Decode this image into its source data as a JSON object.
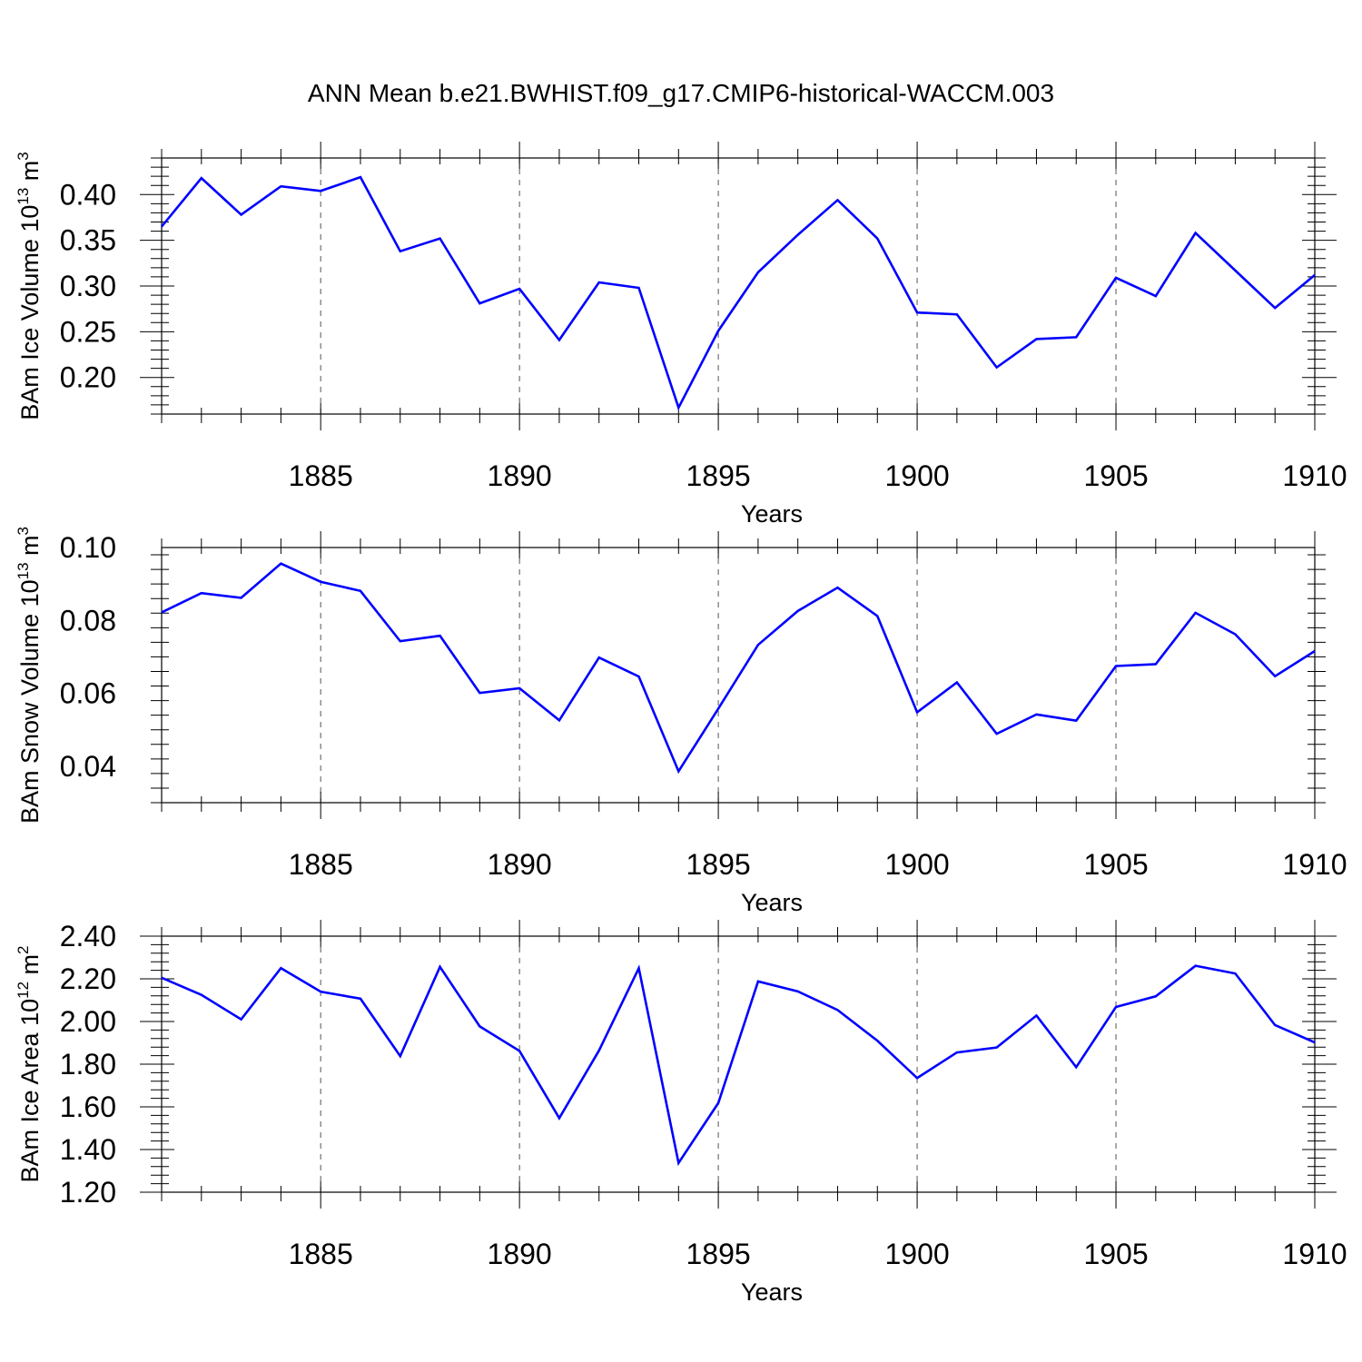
{
  "title": "ANN Mean b.e21.BWHIST.f09_g17.CMIP6-historical-WACCM.003",
  "colors": {
    "series": "#0000ff",
    "frame": "#000000",
    "grid": "#555555"
  },
  "chart_data": [
    {
      "type": "line",
      "xlabel": "Years",
      "ylabel": {
        "base": "BAm Ice Volume 10",
        "exp": "13",
        "unit": " m",
        "unit_exp": "3"
      },
      "xlim": [
        1881,
        1910
      ],
      "ylim": [
        0.16,
        0.44
      ],
      "xticks": [
        1885,
        1890,
        1895,
        1900,
        1905,
        1910
      ],
      "xtick_labels": [
        "1885",
        "1890",
        "1895",
        "1900",
        "1905",
        "1910"
      ],
      "yticks": [
        0.2,
        0.25,
        0.3,
        0.35,
        0.4
      ],
      "ytick_labels": [
        "0.20",
        "0.25",
        "0.30",
        "0.35",
        "0.40"
      ],
      "grid": "vertical-dashed-at-major-x",
      "x": [
        1881,
        1882,
        1883,
        1884,
        1885,
        1886,
        1887,
        1888,
        1889,
        1890,
        1891,
        1892,
        1893,
        1894,
        1895,
        1896,
        1897,
        1898,
        1899,
        1900,
        1901,
        1902,
        1903,
        1904,
        1905,
        1906,
        1907,
        1908,
        1909,
        1910
      ],
      "series": [
        {
          "values": [
            0.365,
            0.418,
            0.378,
            0.409,
            0.404,
            0.419,
            0.338,
            0.352,
            0.281,
            0.297,
            0.241,
            0.304,
            0.298,
            0.167,
            0.251,
            0.315,
            0.356,
            0.394,
            0.352,
            0.271,
            0.269,
            0.211,
            0.242,
            0.244,
            0.309,
            0.289,
            0.358,
            0.317,
            0.276,
            0.312
          ]
        }
      ]
    },
    {
      "type": "line",
      "xlabel": "Years",
      "ylabel": {
        "base": "BAm Snow Volume 10",
        "exp": "13",
        "unit": " m",
        "unit_exp": "3"
      },
      "xlim": [
        1881,
        1910
      ],
      "ylim": [
        0.03,
        0.1
      ],
      "xticks": [
        1885,
        1890,
        1895,
        1900,
        1905,
        1910
      ],
      "xtick_labels": [
        "1885",
        "1890",
        "1895",
        "1900",
        "1905",
        "1910"
      ],
      "yticks": [
        0.04,
        0.06,
        0.08,
        0.1
      ],
      "ytick_labels": [
        "0.04",
        "0.06",
        "0.08",
        "0.10"
      ],
      "grid": "vertical-dashed-at-major-x",
      "x": [
        1881,
        1882,
        1883,
        1884,
        1885,
        1886,
        1887,
        1888,
        1889,
        1890,
        1891,
        1892,
        1893,
        1894,
        1895,
        1896,
        1897,
        1898,
        1899,
        1900,
        1901,
        1902,
        1903,
        1904,
        1905,
        1906,
        1907,
        1908,
        1909,
        1910
      ],
      "series": [
        {
          "values": [
            0.0822,
            0.0875,
            0.0862,
            0.0956,
            0.0906,
            0.0881,
            0.0743,
            0.0758,
            0.0601,
            0.0614,
            0.0526,
            0.0698,
            0.0646,
            0.0386,
            0.0558,
            0.0733,
            0.0826,
            0.089,
            0.0812,
            0.0548,
            0.063,
            0.0489,
            0.0542,
            0.0525,
            0.0675,
            0.068,
            0.0821,
            0.0762,
            0.0647,
            0.0716
          ]
        }
      ]
    },
    {
      "type": "line",
      "xlabel": "Years",
      "ylabel": {
        "base": "BAm Ice Area 10",
        "exp": "12",
        "unit": " m",
        "unit_exp": "2"
      },
      "xlim": [
        1881,
        1910
      ],
      "ylim": [
        1.2,
        2.4
      ],
      "xticks": [
        1885,
        1890,
        1895,
        1900,
        1905,
        1910
      ],
      "xtick_labels": [
        "1885",
        "1890",
        "1895",
        "1900",
        "1905",
        "1910"
      ],
      "yticks": [
        1.2,
        1.4,
        1.6,
        1.8,
        2.0,
        2.2,
        2.4
      ],
      "ytick_labels": [
        "1.20",
        "1.40",
        "1.60",
        "1.80",
        "2.00",
        "2.20",
        "2.40"
      ],
      "grid": "vertical-dashed-at-major-x",
      "x": [
        1881,
        1882,
        1883,
        1884,
        1885,
        1886,
        1887,
        1888,
        1889,
        1890,
        1891,
        1892,
        1893,
        1894,
        1895,
        1896,
        1897,
        1898,
        1899,
        1900,
        1901,
        1902,
        1903,
        1904,
        1905,
        1906,
        1907,
        1908,
        1909,
        1910
      ],
      "series": [
        {
          "values": [
            2.205,
            2.125,
            2.01,
            2.25,
            2.14,
            2.107,
            1.838,
            2.256,
            1.977,
            1.862,
            1.547,
            1.864,
            2.25,
            1.337,
            1.618,
            2.188,
            2.141,
            2.054,
            1.91,
            1.735,
            1.855,
            1.878,
            2.028,
            1.786,
            2.068,
            2.118,
            2.261,
            2.225,
            1.983,
            1.902
          ]
        }
      ]
    }
  ]
}
